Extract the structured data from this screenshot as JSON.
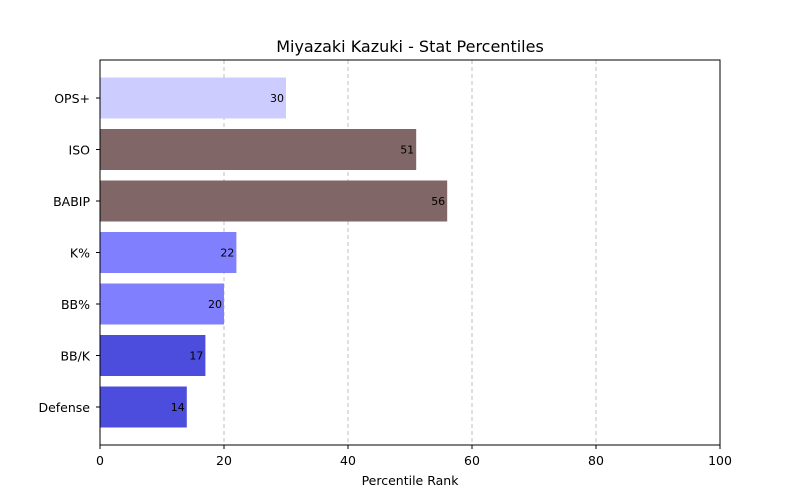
{
  "chart_data": {
    "type": "bar",
    "orientation": "horizontal",
    "title": "Miyazaki Kazuki - Stat Percentiles",
    "xlabel": "Percentile Rank",
    "ylabel": "",
    "xlim": [
      0,
      100
    ],
    "xticks": [
      0,
      20,
      40,
      60,
      80,
      100
    ],
    "grid": "x-axis dashed",
    "categories": [
      "OPS+",
      "ISO",
      "BABIP",
      "K%",
      "BB%",
      "BB/K",
      "Defense"
    ],
    "values": [
      30,
      51,
      56,
      22,
      20,
      17,
      14
    ],
    "colors": [
      "#ccccff",
      "#806666",
      "#806666",
      "#8080ff",
      "#8080ff",
      "#4d4ddd",
      "#4d4ddd"
    ],
    "data_labels": [
      "30",
      "51",
      "56",
      "22",
      "20",
      "17",
      "14"
    ]
  }
}
